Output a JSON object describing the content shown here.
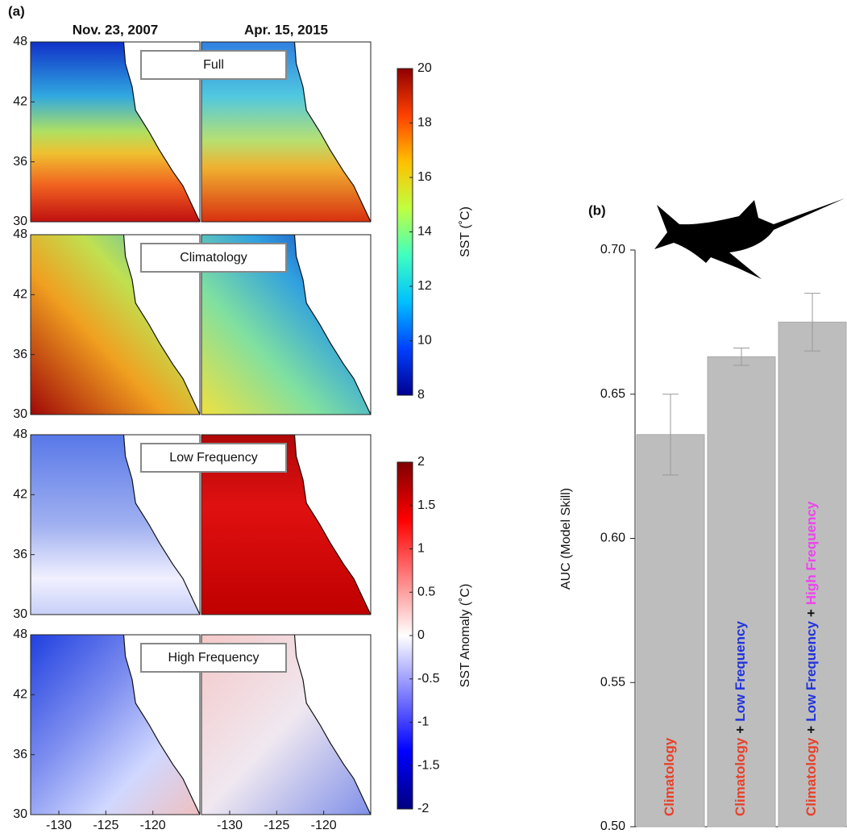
{
  "chart_data": [
    {
      "type": "map-grid",
      "label": "(a)",
      "columns": [
        "Nov. 23, 2007",
        "Apr. 15, 2015"
      ],
      "rows": [
        "Full",
        "Climatology",
        "Low Frequency",
        "High Frequency"
      ],
      "ylim": [
        30,
        48
      ],
      "yticks": [
        30,
        36,
        42,
        48
      ],
      "xlim": [
        -133,
        -115
      ],
      "xticks": [
        -130,
        -125,
        -120
      ],
      "colorbars": [
        {
          "label": "SST (˚C)",
          "lim": [
            8,
            20
          ],
          "ticks": [
            8,
            10,
            12,
            14,
            16,
            18,
            20
          ],
          "colors": [
            "#00008f",
            "#0040ff",
            "#00c0ff",
            "#40ffc0",
            "#c0ff40",
            "#ffc000",
            "#ff4000",
            "#8f0000"
          ]
        },
        {
          "label": "SST Anomaly (˚C)",
          "lim": [
            -2,
            2
          ],
          "ticks": [
            -2,
            -1.5,
            -1,
            -0.5,
            0,
            0.5,
            1,
            1.5,
            2
          ],
          "colors": [
            "#00007f",
            "#0000ff",
            "#8080ff",
            "#ffffff",
            "#ff8080",
            "#ff0000",
            "#7f0000"
          ]
        }
      ]
    },
    {
      "type": "bar",
      "label": "(b)",
      "ylabel": "AUC (Model Skill)",
      "categories": [
        [
          {
            "text": "Climatology",
            "color": "#e8402a"
          }
        ],
        [
          {
            "text": "Climatology",
            "color": "#e8402a"
          },
          {
            "text": "+",
            "color": "#111111"
          },
          {
            "text": "Low Frequency",
            "color": "#2233dd"
          }
        ],
        [
          {
            "text": "Climatology",
            "color": "#e8402a"
          },
          {
            "text": "+",
            "color": "#111111"
          },
          {
            "text": "Low Frequency",
            "color": "#2233dd"
          },
          {
            "text": "+",
            "color": "#111111"
          },
          {
            "text": "High Frequency",
            "color": "#ee44ee"
          }
        ]
      ],
      "values": [
        0.636,
        0.663,
        0.675
      ],
      "errors": [
        0.014,
        0.003,
        0.01
      ],
      "color": "#bdbdbd",
      "ylim": [
        0.5,
        0.7
      ],
      "yticks": [
        {
          "value": 0.5,
          "label": "0.50"
        },
        0.55,
        {
          "value": 0.6,
          "label": "0.60"
        },
        0.65,
        {
          "value": 0.7,
          "label": "0.70"
        }
      ]
    }
  ]
}
